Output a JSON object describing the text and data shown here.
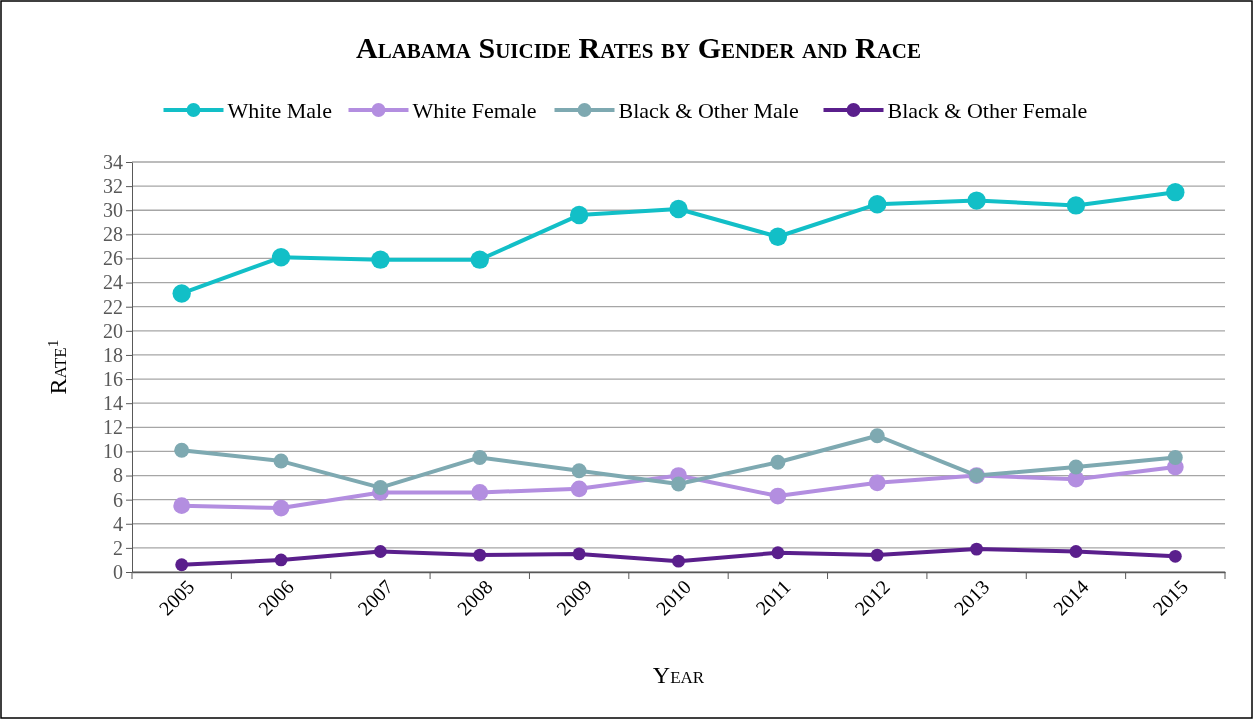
{
  "chart_data": {
    "type": "line",
    "title": "Alabama Suicide Rates by Gender and Race",
    "xlabel": "Year",
    "ylabel": "Rate$^{1}$",
    "categories": [
      "2005",
      "2006",
      "2007",
      "2008",
      "2009",
      "2010",
      "2011",
      "2012",
      "2013",
      "2014",
      "2015"
    ],
    "series": [
      {
        "name": "White Male",
        "color": "#12bfc7",
        "values": [
          23.1,
          26.1,
          25.9,
          25.9,
          29.6,
          30.1,
          27.8,
          30.5,
          30.8,
          30.4,
          31.5
        ]
      },
      {
        "name": "White Female",
        "color": "#b38ee0",
        "values": [
          5.5,
          5.3,
          6.6,
          6.6,
          6.9,
          8.0,
          6.3,
          7.4,
          8.0,
          7.7,
          8.7
        ]
      },
      {
        "name": "Black & Other Male",
        "color": "#7ea9b1",
        "values": [
          10.1,
          9.2,
          7.0,
          9.5,
          8.4,
          7.3,
          9.1,
          11.3,
          8.0,
          8.7,
          9.5
        ]
      },
      {
        "name": "Black & Other Female",
        "color": "#5a1f8c",
        "values": [
          0.6,
          1.0,
          1.7,
          1.4,
          1.5,
          0.9,
          1.6,
          1.4,
          1.9,
          1.7,
          1.3
        ]
      }
    ],
    "ylim": [
      0,
      34
    ],
    "yticks": [
      0,
      2,
      4,
      6,
      8,
      10,
      12,
      14,
      16,
      18,
      20,
      22,
      24,
      26,
      28,
      30,
      32,
      34
    ],
    "grid": "y",
    "legend": "top",
    "marker": "circle",
    "line_style": "solid"
  }
}
